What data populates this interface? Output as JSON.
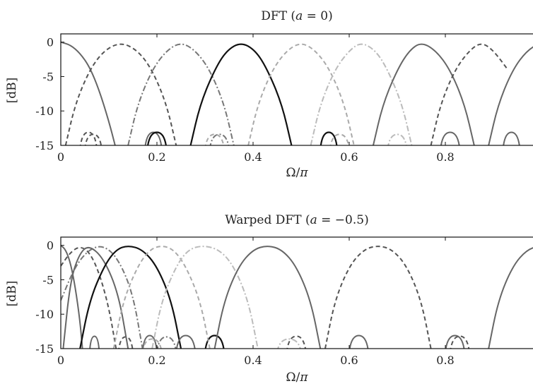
{
  "chart_data": [
    {
      "type": "line",
      "title": "DFT (a = 0)",
      "xlabel": "Ω/π",
      "ylabel": "[dB]",
      "xlim": [
        0,
        1
      ],
      "ylim": [
        -15,
        1.2
      ],
      "xticks": [
        0,
        0.2,
        0.4,
        0.6,
        0.8,
        1
      ],
      "xtick_labels": [
        "0",
        "0.2",
        "0.4",
        "0.6",
        "0.8",
        "1"
      ],
      "yticks": [
        0,
        -5,
        -10,
        -15
      ],
      "ytick_labels": [
        "0",
        "-5",
        "-10",
        "-15"
      ],
      "grid": false,
      "series": [
        {
          "color": "#666666",
          "dash": "solid",
          "main": [
            [
              0,
              0
            ],
            [
              0.02,
              -0.4
            ],
            [
              0.04,
              -1.6
            ],
            [
              0.06,
              -3.6
            ],
            [
              0.08,
              -7
            ],
            [
              0.1,
              -11.5
            ],
            [
              0.113,
              -15
            ]
          ],
          "sidelobes": [
            [
              0.175,
              0.21,
              -13.1
            ]
          ]
        },
        {
          "color": "#555555",
          "dash": "dashed",
          "main": [
            [
              0.01,
              -15
            ],
            [
              0.03,
              -9
            ],
            [
              0.06,
              -4
            ],
            [
              0.09,
              -1.2
            ],
            [
              0.125,
              0
            ],
            [
              0.16,
              -1.2
            ],
            [
              0.19,
              -4
            ],
            [
              0.22,
              -9
            ],
            [
              0.24,
              -15
            ]
          ],
          "sidelobes": [
            [
              0.04,
              0.075,
              -13.1
            ],
            [
              0.05,
              0.085,
              -13.4
            ]
          ]
        },
        {
          "color": "#777777",
          "dash": "dashdot",
          "main": [
            [
              0.14,
              -15
            ],
            [
              0.16,
              -9
            ],
            [
              0.19,
              -4
            ],
            [
              0.22,
              -1.2
            ],
            [
              0.25,
              0
            ],
            [
              0.28,
              -1.2
            ],
            [
              0.31,
              -4
            ],
            [
              0.34,
              -9
            ],
            [
              0.36,
              -15
            ]
          ],
          "sidelobes": [
            [
              0.31,
              0.35,
              -13.4
            ]
          ]
        },
        {
          "color": "#111111",
          "dash": "solid",
          "main": [
            [
              0.27,
              -15
            ],
            [
              0.29,
              -9
            ],
            [
              0.32,
              -4
            ],
            [
              0.345,
              -1.2
            ],
            [
              0.375,
              0
            ],
            [
              0.405,
              -1.2
            ],
            [
              0.43,
              -4
            ],
            [
              0.46,
              -9
            ],
            [
              0.48,
              -15
            ]
          ],
          "sidelobes": [
            [
              0.18,
              0.22,
              -13.1
            ],
            [
              0.54,
              0.575,
              -13.1
            ]
          ]
        },
        {
          "color": "#aaaaaa",
          "dash": "dashed",
          "main": [
            [
              0.39,
              -15
            ],
            [
              0.41,
              -9
            ],
            [
              0.44,
              -4
            ],
            [
              0.47,
              -1.2
            ],
            [
              0.5,
              0
            ],
            [
              0.53,
              -1.2
            ],
            [
              0.56,
              -4
            ],
            [
              0.59,
              -9
            ],
            [
              0.61,
              -15
            ]
          ],
          "sidelobes": [
            [
              0.3,
              0.34,
              -13.4
            ],
            [
              0.56,
              0.6,
              -13.4
            ]
          ]
        },
        {
          "color": "#bbbbbb",
          "dash": "dashdot",
          "main": [
            [
              0.52,
              -15
            ],
            [
              0.54,
              -9
            ],
            [
              0.57,
              -4
            ],
            [
              0.6,
              -1.2
            ],
            [
              0.625,
              0
            ],
            [
              0.655,
              -1.2
            ],
            [
              0.68,
              -4
            ],
            [
              0.71,
              -9
            ],
            [
              0.73,
              -15
            ]
          ],
          "sidelobes": [
            [
              0.68,
              0.72,
              -13.4
            ]
          ]
        },
        {
          "color": "#666666",
          "dash": "solid",
          "main": [
            [
              0.65,
              -15
            ],
            [
              0.67,
              -9
            ],
            [
              0.7,
              -4
            ],
            [
              0.725,
              -1.2
            ],
            [
              0.75,
              0
            ],
            [
              0.78,
              -1.2
            ],
            [
              0.81,
              -4
            ],
            [
              0.84,
              -9
            ],
            [
              0.86,
              -15
            ]
          ],
          "sidelobes": [
            [
              0.79,
              0.83,
              -13.1
            ]
          ]
        },
        {
          "color": "#666666",
          "dash": "solid",
          "main": [
            [
              0.89,
              -15
            ],
            [
              0.91,
              -9
            ],
            [
              0.94,
              -4
            ],
            [
              0.97,
              -1.2
            ],
            [
              1.0,
              0
            ]
          ],
          "sidelobes": [
            [
              0.92,
              0.955,
              -13.1
            ]
          ]
        },
        {
          "color": "#555555",
          "dash": "dashed",
          "main": [
            [
              0.77,
              -15
            ],
            [
              0.79,
              -9
            ],
            [
              0.82,
              -4
            ],
            [
              0.85,
              -1.2
            ],
            [
              0.875,
              0
            ],
            [
              0.9,
              -1.2
            ],
            [
              0.93,
              -4
            ]
          ],
          "sidelobes": []
        }
      ]
    },
    {
      "type": "line",
      "title": "Warped DFT (a = −0.5)",
      "xlabel": "Ω/π",
      "ylabel": "[dB]",
      "xlim": [
        0,
        1
      ],
      "ylim": [
        -15,
        1.2
      ],
      "xticks": [
        0,
        0.2,
        0.4,
        0.6,
        0.8,
        1
      ],
      "xtick_labels": [
        "0",
        "0.2",
        "0.4",
        "0.6",
        "0.8",
        "1"
      ],
      "yticks": [
        0,
        -5,
        -10,
        -15
      ],
      "ytick_labels": [
        "0",
        "-5",
        "-10",
        "-15"
      ],
      "grid": false,
      "series": [
        {
          "color": "#666666",
          "dash": "solid",
          "main": [
            [
              0,
              0
            ],
            [
              0.01,
              -0.6
            ],
            [
              0.02,
              -2.5
            ],
            [
              0.03,
              -6
            ],
            [
              0.04,
              -11
            ],
            [
              0.045,
              -15
            ]
          ],
          "sidelobes": [
            [
              0.06,
              0.08,
              -13.2
            ]
          ]
        },
        {
          "color": "#555555",
          "dash": "dashed",
          "main": [
            [
              0,
              -3
            ],
            [
              0.02,
              -1
            ],
            [
              0.04,
              -0.1
            ],
            [
              0.06,
              -1
            ],
            [
              0.08,
              -4
            ],
            [
              0.1,
              -9
            ],
            [
              0.115,
              -15
            ]
          ],
          "sidelobes": [
            [
              0.12,
              0.15,
              -13.3
            ]
          ]
        },
        {
          "color": "#777777",
          "dash": "dashdot",
          "main": [
            [
              0,
              -8
            ],
            [
              0.03,
              -3
            ],
            [
              0.06,
              -0.5
            ],
            [
              0.09,
              0
            ],
            [
              0.12,
              -2
            ],
            [
              0.15,
              -7
            ],
            [
              0.17,
              -15
            ]
          ],
          "sidelobes": [
            [
              0.2,
              0.24,
              -13.3
            ]
          ]
        },
        {
          "color": "#666666",
          "dash": "solid",
          "main": [
            [
              0.005,
              -15
            ],
            [
              0.02,
              -5
            ],
            [
              0.04,
              -1
            ],
            [
              0.06,
              0
            ],
            [
              0.09,
              -2
            ],
            [
              0.12,
              -7
            ],
            [
              0.14,
              -15
            ]
          ],
          "sidelobes": [
            [
              0.17,
              0.2,
              -13.1
            ]
          ]
        },
        {
          "color": "#111111",
          "dash": "solid",
          "main": [
            [
              0.04,
              -15
            ],
            [
              0.06,
              -8
            ],
            [
              0.09,
              -3
            ],
            [
              0.115,
              -0.6
            ],
            [
              0.14,
              0
            ],
            [
              0.17,
              -0.6
            ],
            [
              0.2,
              -3
            ],
            [
              0.23,
              -8
            ],
            [
              0.25,
              -15
            ]
          ],
          "sidelobes": [
            [
              0.3,
              0.34,
              -13.1
            ]
          ]
        },
        {
          "color": "#aaaaaa",
          "dash": "dashed",
          "main": [
            [
              0.11,
              -15
            ],
            [
              0.13,
              -8
            ],
            [
              0.16,
              -3
            ],
            [
              0.185,
              -0.6
            ],
            [
              0.21,
              0
            ],
            [
              0.235,
              -0.6
            ],
            [
              0.26,
              -3
            ],
            [
              0.29,
              -8
            ],
            [
              0.31,
              -15
            ]
          ],
          "sidelobes": [
            [
              0.17,
              0.21,
              -13.6
            ]
          ]
        },
        {
          "color": "#bbbbbb",
          "dash": "dashdot",
          "main": [
            [
              0.19,
              -15
            ],
            [
              0.21,
              -8
            ],
            [
              0.24,
              -3
            ],
            [
              0.265,
              -0.6
            ],
            [
              0.295,
              0
            ],
            [
              0.33,
              -0.6
            ],
            [
              0.36,
              -3
            ],
            [
              0.39,
              -8
            ],
            [
              0.41,
              -15
            ]
          ],
          "sidelobes": [
            [
              0.45,
              0.5,
              -13.6
            ]
          ]
        },
        {
          "color": "#666666",
          "dash": "solid",
          "main": [
            [
              0.32,
              -15
            ],
            [
              0.34,
              -8
            ],
            [
              0.37,
              -3
            ],
            [
              0.4,
              -0.6
            ],
            [
              0.43,
              0
            ],
            [
              0.46,
              -0.6
            ],
            [
              0.49,
              -3
            ],
            [
              0.52,
              -8
            ],
            [
              0.54,
              -15
            ]
          ],
          "sidelobes": [
            [
              0.24,
              0.28,
              -13.1
            ],
            [
              0.6,
              0.64,
              -13.1
            ]
          ]
        },
        {
          "color": "#555555",
          "dash": "dashed",
          "main": [
            [
              0.55,
              -15
            ],
            [
              0.57,
              -8
            ],
            [
              0.6,
              -3
            ],
            [
              0.63,
              -0.6
            ],
            [
              0.66,
              0
            ],
            [
              0.69,
              -0.6
            ],
            [
              0.72,
              -3
            ],
            [
              0.75,
              -8
            ],
            [
              0.77,
              -15
            ]
          ],
          "sidelobes": [
            [
              0.47,
              0.51,
              -13.2
            ],
            [
              0.81,
              0.85,
              -13.2
            ]
          ]
        },
        {
          "color": "#666666",
          "dash": "solid",
          "main": [
            [
              0.89,
              -15
            ],
            [
              0.91,
              -8
            ],
            [
              0.94,
              -3
            ],
            [
              0.97,
              -0.6
            ],
            [
              1.0,
              0
            ]
          ],
          "sidelobes": [
            [
              0.8,
              0.84,
              -13.1
            ]
          ]
        }
      ]
    }
  ]
}
